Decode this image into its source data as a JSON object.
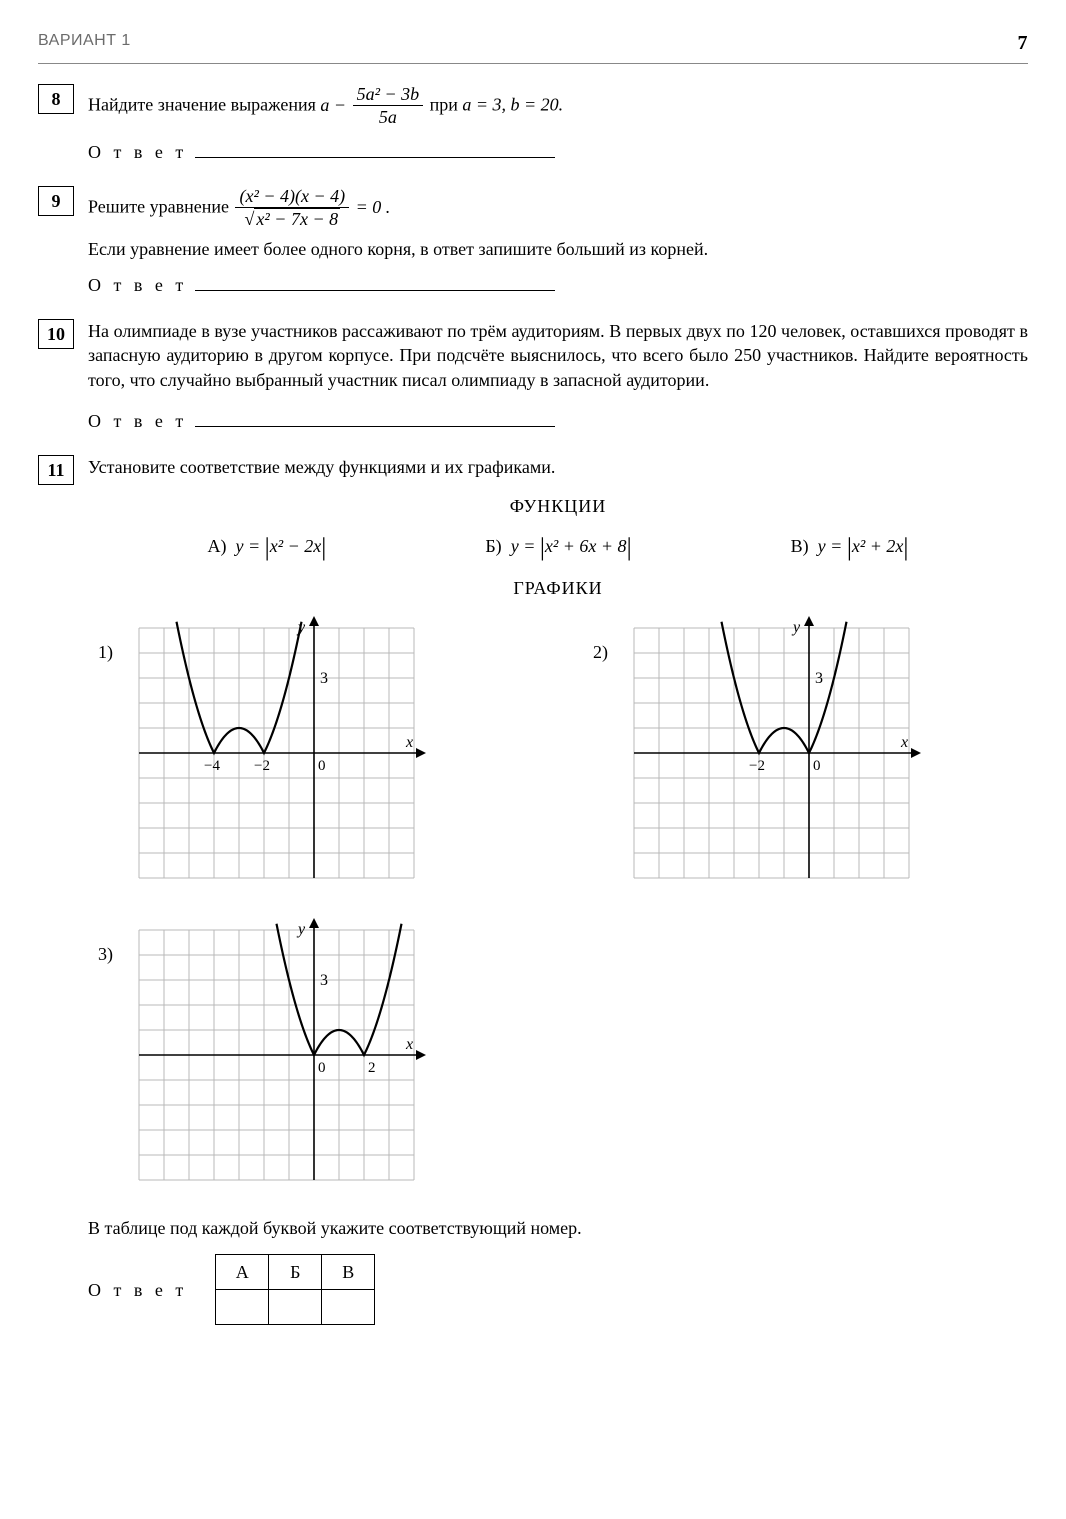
{
  "header": {
    "variant": "ВАРИАНТ 1",
    "page": "7"
  },
  "answer_label": "О т в е т",
  "problems": {
    "p8": {
      "num": "8",
      "prefix": "Найдите значение выражения ",
      "suffix_1": " при ",
      "given": "a = 3,  b = 20.",
      "expr": {
        "lead": "a −",
        "num": "5a² − 3b",
        "den": "5a"
      }
    },
    "p9": {
      "num": "9",
      "prefix": "Решите уравнение ",
      "eq_rhs": "= 0",
      "expr": {
        "num": "(x² − 4)(x − 4)",
        "den_inside": "x² − 7x − 8"
      },
      "note": "Если уравнение имеет более одного корня, в ответ запишите больший из корней."
    },
    "p10": {
      "num": "10",
      "text": "На олимпиаде в вузе участников рассаживают по трём аудиториям. В первых двух по 120 человек, оставшихся проводят в запасную аудиторию в другом корпусе. При подсчёте выяснилось, что всего было 250 участников. Найдите вероятность того, что случайно выбранный участник писал олимпиаду в запасной аудитории."
    },
    "p11": {
      "num": "11",
      "intro": "Установите соответствие между функциями и их графиками.",
      "functions_title": "ФУНКЦИИ",
      "graphs_title": "ГРАФИКИ",
      "funcs": {
        "A": {
          "label": "А)",
          "body": "x² − 2x"
        },
        "B": {
          "label": "Б)",
          "body": "x² + 6x + 8"
        },
        "C": {
          "label": "В)",
          "body": "x² + 2x"
        }
      },
      "graphs": {
        "g1": {
          "label": "1)",
          "x_range": [
            -7,
            4
          ],
          "y_range": [
            -5,
            5
          ],
          "roots": [
            -4,
            -2
          ],
          "vertex_x": -3,
          "tick_y": 3,
          "tick_x_labels": [
            {
              "x": -4,
              "t": "−4"
            },
            {
              "x": -2,
              "t": "−2"
            },
            {
              "x": 0,
              "t": "0"
            }
          ]
        },
        "g2": {
          "label": "2)",
          "x_range": [
            -7,
            4
          ],
          "y_range": [
            -5,
            5
          ],
          "roots": [
            -2,
            0
          ],
          "vertex_x": -1,
          "tick_y": 3,
          "tick_x_labels": [
            {
              "x": -2,
              "t": "−2"
            },
            {
              "x": 0,
              "t": "0"
            }
          ]
        },
        "g3": {
          "label": "3)",
          "x_range": [
            -7,
            4
          ],
          "y_range": [
            -5,
            5
          ],
          "roots": [
            0,
            2
          ],
          "vertex_x": 1,
          "tick_y": 3,
          "tick_x_labels": [
            {
              "x": 0,
              "t": "0"
            },
            {
              "x": 2,
              "t": "2"
            }
          ]
        }
      },
      "table_instruction": "В таблице под каждой буквой укажите соответствующий номер.",
      "table_headers": [
        "А",
        "Б",
        "В"
      ]
    }
  },
  "style": {
    "grid_color": "#b8b8b8",
    "axis_color": "#000000",
    "curve_color": "#000000",
    "bg": "#ffffff",
    "cell": 25,
    "curve_width": 2.2
  }
}
